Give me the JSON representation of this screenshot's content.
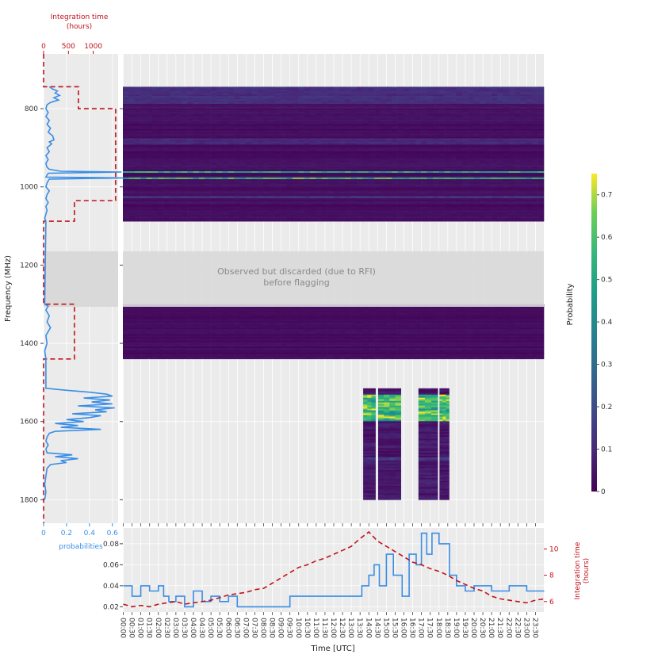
{
  "chart_data": [
    {
      "type": "heatmap",
      "xlabel": "Time [UTC]",
      "ylabel": "Frequency (MHz)",
      "xticks": [
        "00:00",
        "00:30",
        "01:00",
        "01:30",
        "02:00",
        "02:30",
        "03:00",
        "03:30",
        "04:00",
        "04:30",
        "05:00",
        "05:30",
        "06:00",
        "06:30",
        "07:00",
        "07:30",
        "08:00",
        "08:30",
        "09:00",
        "09:30",
        "10:00",
        "10:30",
        "11:00",
        "11:30",
        "12:00",
        "12:30",
        "13:00",
        "13:30",
        "14:00",
        "14:30",
        "15:00",
        "15:30",
        "16:00",
        "16:30",
        "17:00",
        "17:30",
        "18:00",
        "18:30",
        "19:00",
        "19:30",
        "20:00",
        "20:30",
        "21:00",
        "21:30",
        "22:00",
        "22:30",
        "23:00",
        "23:30"
      ],
      "yticks": [
        800,
        1000,
        1200,
        1400,
        1600,
        1800
      ],
      "ylim": [
        1860,
        660
      ],
      "colorbar": {
        "label": "Probability",
        "ticks": [
          0,
          0.1,
          0.2,
          0.3,
          0.4,
          0.5,
          0.6,
          0.7
        ],
        "range": [
          0,
          0.75
        ],
        "colormap": "viridis"
      },
      "annotation": "Observed but discarded (due to RFI)\nbefore flagging",
      "discarded_band": [
        1150,
        1300
      ],
      "regions": [
        {
          "f_start": 744,
          "f_end": 1088,
          "t_start": 0,
          "t_end": 24,
          "base": 0.03
        },
        {
          "f_start": 1300,
          "f_end": 1440,
          "t_start": 0,
          "t_end": 24,
          "base": 0.025
        },
        {
          "f_start": 1515,
          "f_end": 1800,
          "t_start": 13.7,
          "t_end": 14.4,
          "base": 0.05
        },
        {
          "f_start": 1515,
          "f_end": 1800,
          "t_start": 14.55,
          "t_end": 15.85,
          "base": 0.05
        },
        {
          "f_start": 1515,
          "f_end": 1800,
          "t_start": 16.85,
          "t_end": 17.95,
          "base": 0.05
        },
        {
          "f_start": 1515,
          "f_end": 1800,
          "t_start": 18.05,
          "t_end": 18.6,
          "base": 0.05
        }
      ],
      "bright_bands": [
        {
          "f_start": 744,
          "f_end": 786,
          "value": 0.12
        },
        {
          "f_start": 878,
          "f_end": 892,
          "value": 0.1
        },
        {
          "f_start": 960,
          "f_end": 964,
          "value": 0.45
        },
        {
          "f_start": 975,
          "f_end": 978,
          "value": 0.7
        },
        {
          "f_start": 1025,
          "f_end": 1028,
          "value": 0.2
        },
        {
          "f_start": 1530,
          "f_end": 1600,
          "value": 0.6
        },
        {
          "f_start": 1690,
          "f_end": 1700,
          "value": 0.15
        }
      ]
    },
    {
      "type": "line",
      "position": "left",
      "title": "Integration time\n(hours)",
      "xticks_top": [
        0,
        500,
        1000
      ],
      "xticks_bottom": [
        0,
        0.2,
        0.4,
        0.6
      ],
      "xlabel_bottom": "probabilities",
      "series": [
        {
          "axis": "integration_time",
          "style": "dashed",
          "freq": [
            660,
            744,
            744,
            800,
            800,
            1035,
            1035,
            1088,
            1088,
            1300,
            1300,
            1440,
            1440,
            1860
          ],
          "values": [
            0,
            0,
            700,
            700,
            1450,
            1450,
            620,
            620,
            0,
            0,
            620,
            620,
            0,
            0
          ]
        },
        {
          "axis": "probabilities",
          "freq": [
            744,
            750,
            755,
            760,
            766,
            772,
            778,
            784,
            790,
            800,
            810,
            820,
            830,
            840,
            850,
            860,
            870,
            880,
            885,
            890,
            900,
            910,
            920,
            930,
            940,
            950,
            955,
            960,
            962,
            965,
            970,
            975,
            977,
            980,
            990,
            1000,
            1010,
            1020,
            1030,
            1040,
            1050,
            1060,
            1070,
            1080,
            1088,
            1300,
            1305,
            1315,
            1330,
            1345,
            1360,
            1380,
            1400,
            1420,
            1440,
            1515,
            1520,
            1525,
            1530,
            1535,
            1540,
            1545,
            1550,
            1555,
            1560,
            1565,
            1570,
            1575,
            1580,
            1585,
            1590,
            1595,
            1600,
            1605,
            1610,
            1615,
            1620,
            1625,
            1630,
            1640,
            1650,
            1660,
            1670,
            1680,
            1685,
            1690,
            1695,
            1700,
            1705,
            1710,
            1720,
            1740,
            1760,
            1780,
            1800
          ],
          "values": [
            0.05,
            0.08,
            0.12,
            0.1,
            0.14,
            0.09,
            0.13,
            0.06,
            0.03,
            0.02,
            0.04,
            0.02,
            0.05,
            0.03,
            0.06,
            0.04,
            0.08,
            0.09,
            0.05,
            0.07,
            0.03,
            0.05,
            0.02,
            0.04,
            0.02,
            0.03,
            0.05,
            0.15,
            0.68,
            0.04,
            0.03,
            0.02,
            0.72,
            0.05,
            0.03,
            0.02,
            0.05,
            0.03,
            0.02,
            0.04,
            0.02,
            0.03,
            0.02,
            0.01,
            0.02,
            0.01,
            0.04,
            0.02,
            0.05,
            0.03,
            0.06,
            0.02,
            0.03,
            0.01,
            0.02,
            0.02,
            0.2,
            0.4,
            0.55,
            0.6,
            0.35,
            0.58,
            0.42,
            0.6,
            0.3,
            0.62,
            0.45,
            0.55,
            0.25,
            0.5,
            0.4,
            0.2,
            0.35,
            0.1,
            0.3,
            0.15,
            0.5,
            0.1,
            0.05,
            0.03,
            0.02,
            0.04,
            0.02,
            0.03,
            0.25,
            0.1,
            0.3,
            0.15,
            0.2,
            0.06,
            0.03,
            0.02,
            0.01,
            0.02,
            0.01
          ]
        }
      ]
    },
    {
      "type": "line",
      "position": "bottom",
      "ylabel_right": "Integration time\n(hours)",
      "yticks_left": [
        0.02,
        0.04,
        0.06,
        0.08
      ],
      "yticks_right": [
        6,
        8,
        10
      ],
      "series": [
        {
          "axis": "probabilities",
          "x": [
            0,
            0.5,
            0.5,
            1.0,
            1.0,
            1.5,
            1.5,
            2.0,
            2.0,
            2.3,
            2.3,
            2.6,
            2.6,
            3.0,
            3.0,
            3.5,
            3.5,
            4.0,
            4.0,
            4.5,
            4.5,
            5.0,
            5.0,
            5.5,
            5.5,
            6.0,
            6.0,
            6.5,
            6.5,
            7.0,
            7.0,
            7.5,
            7.5,
            8.0,
            8.0,
            8.5,
            8.5,
            9.0,
            9.0,
            9.5,
            9.5,
            10.0,
            10.0,
            13.6,
            13.6,
            14.0,
            14.0,
            14.3,
            14.3,
            14.6,
            14.6,
            15.0,
            15.0,
            15.4,
            15.4,
            15.9,
            15.9,
            16.3,
            16.3,
            16.7,
            16.7,
            17.0,
            17.0,
            17.3,
            17.3,
            17.6,
            17.6,
            18.0,
            18.0,
            18.6,
            18.6,
            19.0,
            19.0,
            19.5,
            19.5,
            20.0,
            20.0,
            21.0,
            21.0,
            22.0,
            22.0,
            23.0,
            23.0,
            24.0
          ],
          "values": [
            0.04,
            0.04,
            0.03,
            0.03,
            0.04,
            0.04,
            0.035,
            0.035,
            0.04,
            0.04,
            0.03,
            0.03,
            0.025,
            0.025,
            0.03,
            0.03,
            0.02,
            0.02,
            0.035,
            0.035,
            0.025,
            0.025,
            0.03,
            0.03,
            0.025,
            0.025,
            0.03,
            0.03,
            0.02,
            0.02,
            0.02,
            0.02,
            0.02,
            0.02,
            0.02,
            0.02,
            0.02,
            0.02,
            0.02,
            0.02,
            0.03,
            0.03,
            0.03,
            0.03,
            0.04,
            0.04,
            0.05,
            0.05,
            0.06,
            0.06,
            0.04,
            0.04,
            0.07,
            0.07,
            0.05,
            0.05,
            0.03,
            0.03,
            0.07,
            0.07,
            0.06,
            0.06,
            0.09,
            0.09,
            0.07,
            0.07,
            0.09,
            0.09,
            0.08,
            0.08,
            0.05,
            0.05,
            0.04,
            0.04,
            0.035,
            0.035,
            0.04,
            0.04,
            0.035,
            0.035,
            0.04,
            0.04,
            0.035,
            0.035
          ]
        },
        {
          "axis": "integration_time",
          "style": "dashed",
          "x": [
            0,
            0.5,
            1.0,
            1.5,
            2.0,
            2.5,
            3.0,
            3.5,
            4.0,
            4.5,
            5.0,
            5.5,
            6.0,
            6.5,
            7.0,
            7.5,
            8.0,
            8.5,
            9.0,
            9.5,
            10.0,
            10.5,
            11.0,
            11.5,
            12.0,
            12.5,
            13.0,
            13.5,
            14.0,
            14.5,
            15.0,
            15.5,
            16.0,
            16.5,
            17.0,
            17.5,
            18.0,
            18.5,
            19.0,
            19.5,
            20.0,
            20.5,
            21.0,
            21.5,
            22.0,
            22.5,
            23.0,
            23.5,
            24.0
          ],
          "values": [
            5.8,
            5.6,
            5.7,
            5.6,
            5.8,
            5.9,
            6.0,
            5.8,
            5.9,
            6.0,
            6.1,
            6.3,
            6.5,
            6.6,
            6.7,
            6.9,
            7.0,
            7.4,
            7.8,
            8.2,
            8.6,
            8.8,
            9.1,
            9.3,
            9.6,
            9.9,
            10.2,
            10.8,
            11.3,
            10.6,
            10.2,
            9.8,
            9.4,
            9.0,
            8.8,
            8.5,
            8.3,
            8.0,
            7.6,
            7.3,
            7.0,
            6.8,
            6.4,
            6.2,
            6.1,
            6.0,
            5.9,
            6.1,
            6.2
          ]
        }
      ]
    }
  ]
}
